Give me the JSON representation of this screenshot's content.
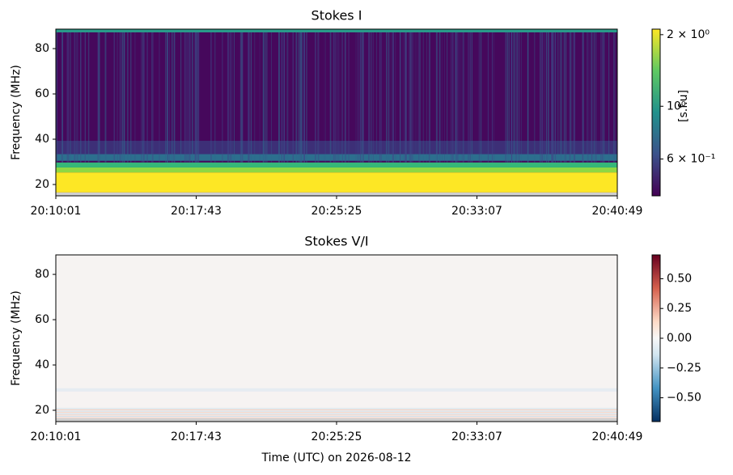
{
  "chart_data": [
    {
      "type": "heatmap",
      "title": "Stokes I",
      "ylabel": "Frequency (MHz)",
      "xticks": [
        "20:10:01",
        "20:17:43",
        "20:25:25",
        "20:33:07",
        "20:40:49"
      ],
      "ylim": [
        15,
        88.6
      ],
      "yticks": [
        20,
        40,
        60,
        80
      ],
      "colormap": "viridis",
      "colorbar": {
        "label": "[s.f.u]",
        "log": true,
        "lim": [
          0.42,
          2.11
        ],
        "ticks": [
          {
            "value": 2,
            "label": "2 × 10⁰"
          },
          {
            "value": 1,
            "label": "10⁰"
          },
          {
            "value": 0.6,
            "label": "6 × 10⁻¹"
          }
        ]
      }
    },
    {
      "type": "heatmap",
      "title": "Stokes V/I",
      "ylabel": "Frequency (MHz)",
      "xlabel": "Time (UTC) on 2026-08-12",
      "xticks": [
        "20:10:01",
        "20:17:43",
        "20:25:25",
        "20:33:07",
        "20:40:49"
      ],
      "ylim": [
        15,
        88.6
      ],
      "yticks": [
        20,
        40,
        60,
        80
      ],
      "colormap": "RdBu_r",
      "colorbar": {
        "log": false,
        "lim": [
          -0.7,
          0.7
        ],
        "ticks": [
          {
            "value": 0.5,
            "label": "0.50"
          },
          {
            "value": 0.25,
            "label": "0.25"
          },
          {
            "value": 0,
            "label": "0.00"
          },
          {
            "value": -0.25,
            "label": "−0.25"
          },
          {
            "value": -0.5,
            "label": "−0.50"
          }
        ]
      }
    }
  ]
}
